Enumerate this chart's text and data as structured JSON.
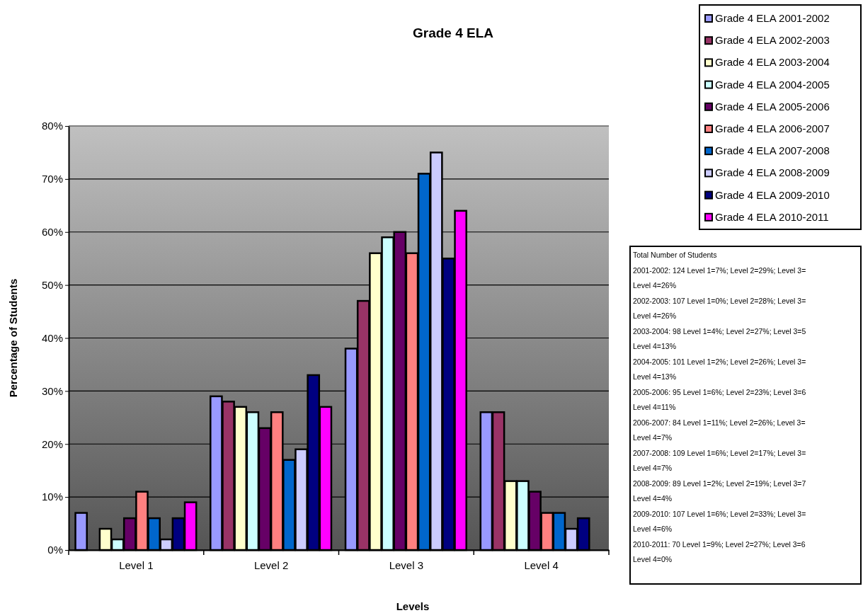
{
  "chart_data": {
    "type": "bar",
    "title": "Grade 4 ELA",
    "xlabel": "Levels",
    "ylabel": "Percentage of Students",
    "categories": [
      "Level 1",
      "Level 2",
      "Level 3",
      "Level 4"
    ],
    "series": [
      {
        "name": "Grade 4 ELA 2001-2002",
        "color": "#9999ff",
        "values": [
          7,
          29,
          38,
          26
        ]
      },
      {
        "name": "Grade 4 ELA 2002-2003",
        "color": "#993366",
        "values": [
          0,
          28,
          47,
          26
        ]
      },
      {
        "name": "Grade 4 ELA 2003-2004",
        "color": "#ffffcc",
        "values": [
          4,
          27,
          56,
          13
        ]
      },
      {
        "name": "Grade 4 ELA 2004-2005",
        "color": "#ccffff",
        "values": [
          2,
          26,
          59,
          13
        ]
      },
      {
        "name": "Grade 4 ELA 2005-2006",
        "color": "#660066",
        "values": [
          6,
          23,
          60,
          11
        ]
      },
      {
        "name": "Grade 4 ELA 2006-2007",
        "color": "#ff8080",
        "values": [
          11,
          26,
          56,
          7
        ]
      },
      {
        "name": "Grade 4 ELA 2007-2008",
        "color": "#0066cc",
        "values": [
          6,
          17,
          71,
          7
        ]
      },
      {
        "name": "Grade 4 ELA 2008-2009",
        "color": "#ccccff",
        "values": [
          2,
          19,
          75,
          4
        ]
      },
      {
        "name": "Grade 4 ELA 2009-2010",
        "color": "#000080",
        "values": [
          6,
          33,
          55,
          6
        ]
      },
      {
        "name": "Grade 4 ELA 2010-2011",
        "color": "#ff00ff",
        "values": [
          9,
          27,
          64,
          0
        ]
      }
    ],
    "ylim": [
      0,
      80
    ],
    "yticks": [
      {
        "value": 0,
        "label": "0%"
      },
      {
        "value": 10,
        "label": "10%"
      },
      {
        "value": 20,
        "label": "20%"
      },
      {
        "value": 30,
        "label": "30%"
      },
      {
        "value": 40,
        "label": "40%"
      },
      {
        "value": 50,
        "label": "50%"
      },
      {
        "value": 60,
        "label": "60%"
      },
      {
        "value": 70,
        "label": "70%"
      },
      {
        "value": 80,
        "label": "80%"
      }
    ],
    "grid": "y",
    "legend": "top right",
    "annotations": [
      "Total Number of Students",
      "2001-2002: 124 Level 1=7%; Level 2=29%; Level 3=",
      "Level 4=26%",
      "2002-2003: 107 Level 1=0%; Level 2=28%; Level 3=",
      "Level 4=26%",
      "2003-2004: 98 Level 1=4%; Level 2=27%; Level 3=5",
      "Level 4=13%",
      "2004-2005: 101 Level 1=2%; Level 2=26%; Level 3=",
      "Level 4=13%",
      "2005-2006: 95 Level 1=6%; Level 2=23%; Level 3=6",
      "Level 4=11%",
      "2006-2007: 84 Level 1=11%; Level 2=26%; Level 3=",
      "Level 4=7%",
      "2007-2008: 109 Level 1=6%; Level 2=17%; Level 3=",
      "Level 4=7%",
      "2008-2009: 89 Level 1=2%; Level 2=19%; Level 3=7",
      "Level 4=4%",
      "2009-2010: 107 Level 1=6%; Level 2=33%; Level 3=",
      "Level 4=6%",
      "2010-2011: 70 Level 1=9%; Level 2=27%; Level 3=6",
      "Level 4=0%"
    ]
  }
}
